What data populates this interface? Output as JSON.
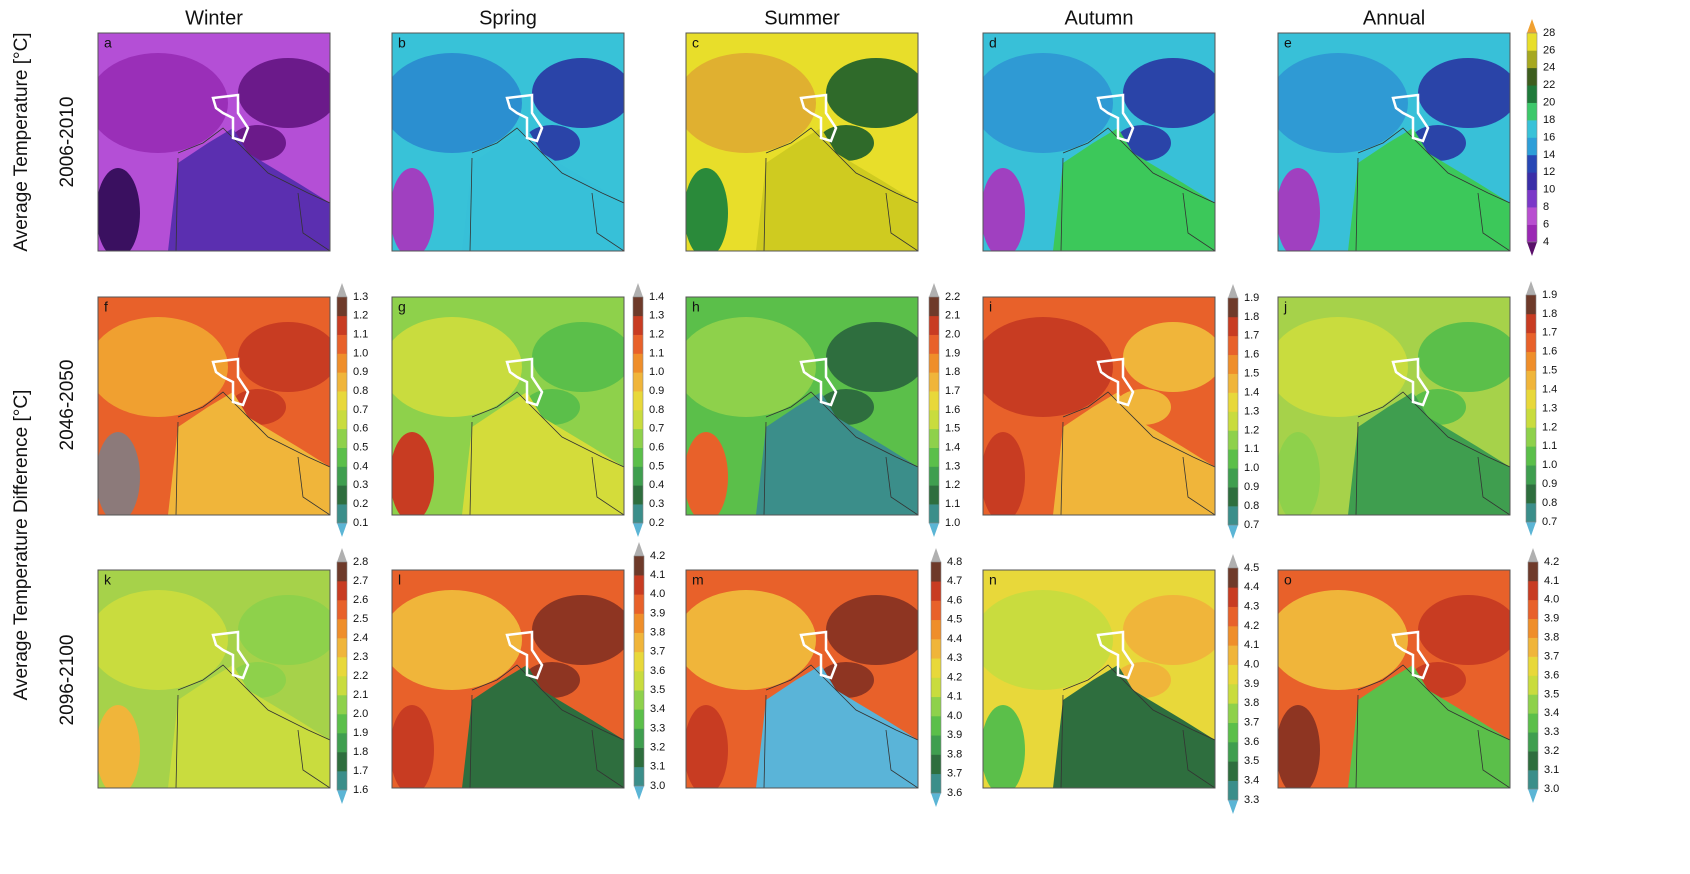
{
  "columns": [
    "Winter",
    "Spring",
    "Summer",
    "Autumn",
    "Annual"
  ],
  "row_axis_labels": [
    "Average Temperature  [°C]",
    "Average Temperature Difference  [°C]"
  ],
  "rows": [
    "2006-2010",
    "2046-2050",
    "2096-2100"
  ],
  "panels": [
    "a",
    "b",
    "c",
    "d",
    "e",
    "f",
    "g",
    "h",
    "i",
    "j",
    "k",
    "l",
    "m",
    "n",
    "o"
  ],
  "palettes": {
    "temperature": {
      "colors": [
        "#9a28b4",
        "#b84fd0",
        "#7b38c8",
        "#3a2ea8",
        "#2747b5",
        "#2d9ed8",
        "#38c2d8",
        "#3cc86a",
        "#1f7a3a",
        "#3d5e1e",
        "#a6a820",
        "#e8de2a"
      ],
      "under": "#5a106a",
      "over": "#f0a030"
    },
    "difference": {
      "colors": [
        "#3b8e8a",
        "#2e6e3e",
        "#3f9e4f",
        "#5bbf4a",
        "#8ed14b",
        "#c9dc3e",
        "#e8d83a",
        "#f0b53a",
        "#ef8e2a",
        "#e8612a",
        "#c83c22",
        "#6e3a2a"
      ],
      "under": "#5bb5d5",
      "over": "#b0b0b0"
    }
  },
  "colorbars": [
    {
      "palette": "temperature",
      "ticks": [
        "28",
        "26",
        "24",
        "22",
        "20",
        "18",
        "16",
        "14",
        "12",
        "10",
        "8",
        "6",
        "4"
      ]
    },
    {
      "palette": "difference",
      "ticks": [
        "1.3",
        "1.2",
        "1.1",
        "1.0",
        "0.9",
        "0.8",
        "0.7",
        "0.6",
        "0.5",
        "0.4",
        "0.3",
        "0.2",
        "0.1"
      ]
    },
    {
      "palette": "difference",
      "ticks": [
        "1.4",
        "1.3",
        "1.2",
        "1.1",
        "1.0",
        "0.9",
        "0.8",
        "0.7",
        "0.6",
        "0.5",
        "0.4",
        "0.3",
        "0.2"
      ]
    },
    {
      "palette": "difference",
      "ticks": [
        "2.2",
        "2.1",
        "2.0",
        "1.9",
        "1.8",
        "1.7",
        "1.6",
        "1.5",
        "1.4",
        "1.3",
        "1.2",
        "1.1",
        "1.0"
      ]
    },
    {
      "palette": "difference",
      "ticks": [
        "1.9",
        "1.8",
        "1.7",
        "1.6",
        "1.5",
        "1.4",
        "1.3",
        "1.2",
        "1.1",
        "1.0",
        "0.9",
        "0.8",
        "0.7"
      ]
    },
    {
      "palette": "difference",
      "ticks": [
        "1.9",
        "1.8",
        "1.7",
        "1.6",
        "1.5",
        "1.4",
        "1.3",
        "1.2",
        "1.1",
        "1.0",
        "0.9",
        "0.8",
        "0.7"
      ]
    },
    {
      "palette": "difference",
      "ticks": [
        "2.8",
        "2.7",
        "2.6",
        "2.5",
        "2.4",
        "2.3",
        "2.2",
        "2.1",
        "2.0",
        "1.9",
        "1.8",
        "1.7",
        "1.6"
      ]
    },
    {
      "palette": "difference",
      "ticks": [
        "4.2",
        "4.1",
        "4.0",
        "3.9",
        "3.8",
        "3.7",
        "3.6",
        "3.5",
        "3.4",
        "3.3",
        "3.2",
        "3.1",
        "3.0"
      ]
    },
    {
      "palette": "difference",
      "ticks": [
        "4.8",
        "4.7",
        "4.6",
        "4.5",
        "4.4",
        "4.3",
        "4.2",
        "4.1",
        "4.0",
        "3.9",
        "3.8",
        "3.7",
        "3.6"
      ]
    },
    {
      "palette": "difference",
      "ticks": [
        "4.5",
        "4.4",
        "4.3",
        "4.2",
        "4.1",
        "4.0",
        "3.9",
        "3.8",
        "3.7",
        "3.6",
        "3.5",
        "3.4",
        "3.3"
      ]
    },
    {
      "palette": "difference",
      "ticks": [
        "4.2",
        "4.1",
        "4.0",
        "3.9",
        "3.8",
        "3.7",
        "3.6",
        "3.5",
        "3.4",
        "3.3",
        "3.2",
        "3.1",
        "3.0"
      ]
    }
  ]
}
